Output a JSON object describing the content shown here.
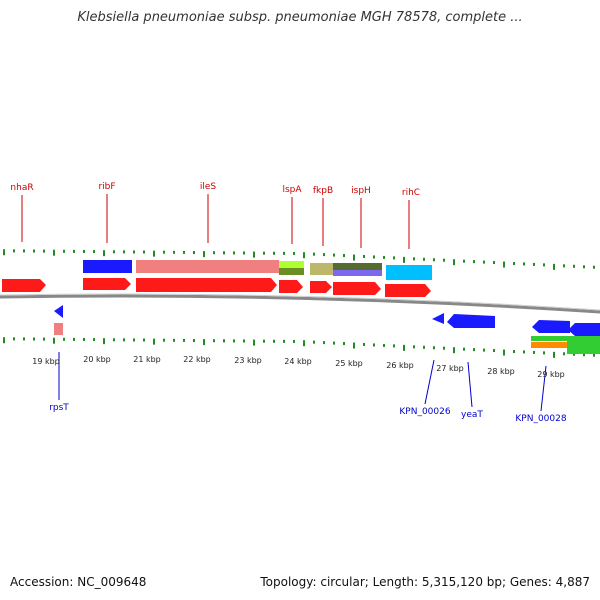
{
  "title": "Klebsiella pneumoniae subsp. pneumoniae MGH 78578, complete ...",
  "footer": {
    "accession": "Accession: NC_009648",
    "info": "Topology: circular; Length: 5,315,120 bp; Genes: 4,887"
  },
  "colors": {
    "gene_red": "#ff1a1a",
    "gene_blue": "#1a1aff",
    "label_red": "#cc0000",
    "label_blue": "#0000cc",
    "tick_green": "#228b22",
    "backbone": "#888888"
  },
  "scale_labels": [
    "19 kbp",
    "20 kbp",
    "21 kbp",
    "22 kbp",
    "23 kbp",
    "24 kbp",
    "25 kbp",
    "26 kbp",
    "27 kbp",
    "28 kbp",
    "29 kbp"
  ],
  "top_labels": [
    "nhaR",
    "ribF",
    "ileS",
    "lspA",
    "fkpB",
    "ispH",
    "rihC"
  ],
  "bottom_labels": [
    "rpsT",
    "KPN_00026",
    "yeaT",
    "KPN_00028"
  ]
}
